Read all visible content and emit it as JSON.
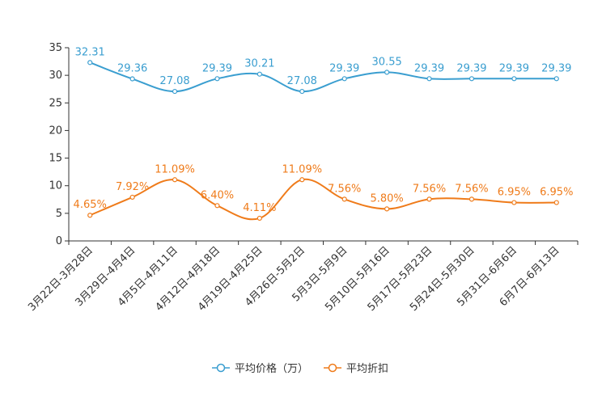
{
  "chart_data": {
    "type": "line",
    "categories": [
      "3月22日-3月28日",
      "3月29日-4月4日",
      "4月5日-4月11日",
      "4月12日-4月18日",
      "4月19日-4月25日",
      "4月26日-5月2日",
      "5月3日-5月9日",
      "5月10日-5月16日",
      "5月17日-5月23日",
      "5月24日-5月30日",
      "5月31日-6月6日",
      "6月7日-6月13日"
    ],
    "ylim": [
      0,
      35
    ],
    "yticks": [
      0,
      5,
      10,
      15,
      20,
      25,
      30,
      35
    ],
    "series": [
      {
        "name": "平均价格（万）",
        "color": "#3a9ed0",
        "values": [
          32.31,
          29.36,
          27.08,
          29.39,
          30.21,
          27.08,
          29.39,
          30.55,
          29.39,
          29.39,
          29.39,
          29.39
        ],
        "labels": [
          "32.31",
          "29.36",
          "27.08",
          "29.39",
          "30.21",
          "27.08",
          "29.39",
          "30.55",
          "29.39",
          "29.39",
          "29.39",
          "29.39"
        ]
      },
      {
        "name": "平均折扣",
        "color": "#ef7b1a",
        "values": [
          4.65,
          7.92,
          11.09,
          6.4,
          4.11,
          11.09,
          7.56,
          5.8,
          7.56,
          7.56,
          6.95,
          6.95
        ],
        "labels": [
          "4.65%",
          "7.92%",
          "11.09%",
          "6.40%",
          "4.11%",
          "11.09%",
          "7.56%",
          "5.80%",
          "7.56%",
          "7.56%",
          "6.95%",
          "6.95%"
        ]
      }
    ],
    "legend_position": "bottom-center"
  }
}
